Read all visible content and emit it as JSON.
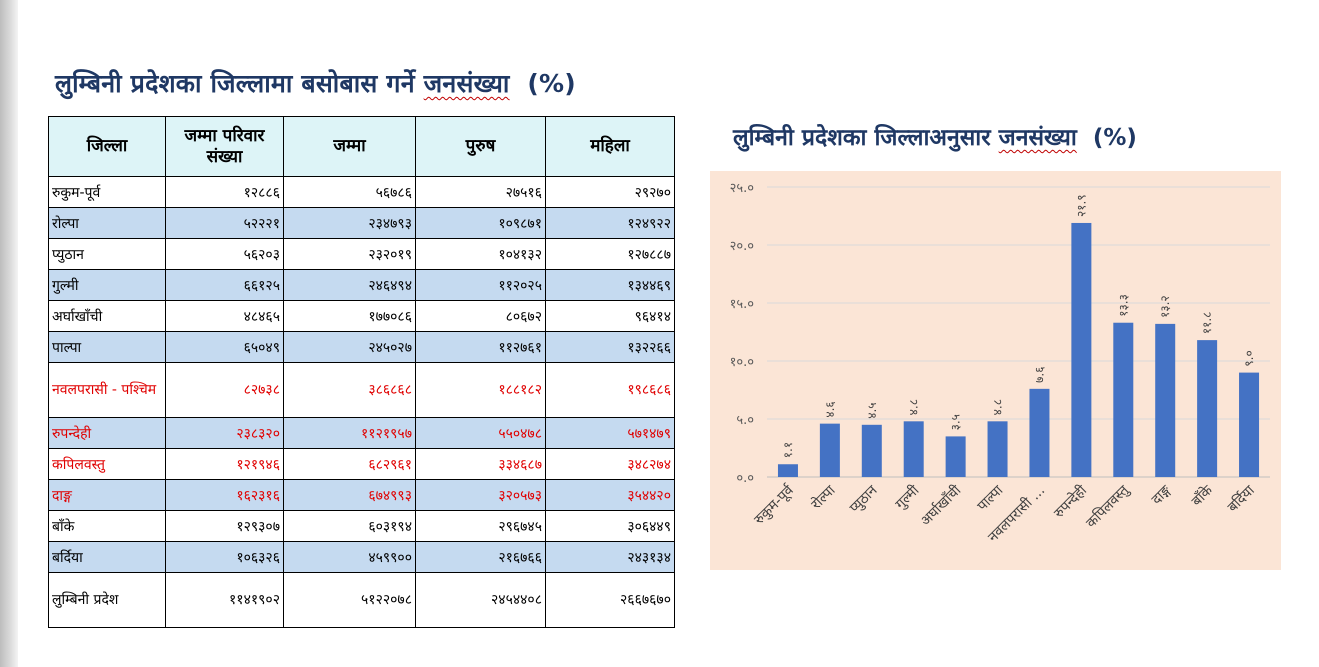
{
  "slide_title_main": "लुम्बिनी प्रदेशका जिल्लामा बसोबास गर्ने",
  "slide_title_word": "जनसंख्या",
  "slide_title_unit": "(%)",
  "table": {
    "headers": [
      "जिल्ला",
      "जम्मा परिवार संख्या",
      "जम्मा",
      "पुरुष",
      "महिला"
    ],
    "rows": [
      {
        "district": "रुकुम-पूर्व",
        "households": "१२८८६",
        "total": "५६७८६",
        "male": "२७५१६",
        "female": "२९२७०",
        "shaded": false,
        "red": false
      },
      {
        "district": "रोल्पा",
        "households": "५२२२१",
        "total": "२३४७९३",
        "male": "१०९८७१",
        "female": "१२४९२२",
        "shaded": true,
        "red": false
      },
      {
        "district": "प्युठान",
        "households": "५६२०३",
        "total": "२३२०१९",
        "male": "१०४१३२",
        "female": "१२७८८७",
        "shaded": false,
        "red": false
      },
      {
        "district": "गुल्मी",
        "households": "६६१२५",
        "total": "२४६४९४",
        "male": "११२०२५",
        "female": "१३४४६९",
        "shaded": true,
        "red": false
      },
      {
        "district": "अर्घाखाँची",
        "households": "४८४६५",
        "total": "१७७०८६",
        "male": "८०६७२",
        "female": "९६४१४",
        "shaded": false,
        "red": false
      },
      {
        "district": "पाल्पा",
        "households": "६५०४९",
        "total": "२४५०२७",
        "male": "११२७६१",
        "female": "१३२२६६",
        "shaded": true,
        "red": false
      },
      {
        "district": "नवलपरासी - पश्चिम",
        "households": "८२७३८",
        "total": "३८६८६८",
        "male": "१८८१८२",
        "female": "१९८६८६",
        "shaded": false,
        "red": true
      },
      {
        "district": "रुपन्देही",
        "households": "२३८३२०",
        "total": "११२१९५७",
        "male": "५५०४७८",
        "female": "५७१४७९",
        "shaded": true,
        "red": true
      },
      {
        "district": "कपिलवस्तु",
        "households": "१२१९४६",
        "total": "६८२९६१",
        "male": "३३४६८७",
        "female": "३४८२७४",
        "shaded": false,
        "red": true
      },
      {
        "district": "दाङ्ग",
        "households": "१६२३१६",
        "total": "६७४९९३",
        "male": "३२०५७३",
        "female": "३५४४२०",
        "shaded": true,
        "red": true
      },
      {
        "district": "बाँके",
        "households": "१२९३०७",
        "total": "६०३१९४",
        "male": "२९६७४५",
        "female": "३०६४४९",
        "shaded": false,
        "red": false
      },
      {
        "district": "बर्दिया",
        "households": "१०६३२६",
        "total": "४५९९००",
        "male": "२१६७६६",
        "female": "२४३१३४",
        "shaded": true,
        "red": false
      },
      {
        "district": "लुम्बिनी प्रदेश",
        "households": "११४१९०२",
        "total": "५१२२०७८",
        "male": "२४५४४०८",
        "female": "२६६७६७०",
        "shaded": false,
        "red": false
      }
    ]
  },
  "chart_data": {
    "type": "bar",
    "title_main": "लुम्बिनी प्रदेशका जिल्लाअनुसार",
    "title_word": "जनसंख्या",
    "title_unit": "(%)",
    "categories": [
      "रुकुम-पूर्व",
      "रोल्पा",
      "प्युठान",
      "गुल्मी",
      "अर्घाखाँची",
      "पाल्पा",
      "नवलपरासी ...",
      "रुपन्देही",
      "कपिलवस्तु",
      "दाङ्ग",
      "बाँके",
      "बर्दिया"
    ],
    "values": [
      1.1,
      4.6,
      4.5,
      4.8,
      3.5,
      4.8,
      7.6,
      21.9,
      13.3,
      13.2,
      11.8,
      9.0
    ],
    "value_labels": [
      "१.१",
      "४.६",
      "४.५",
      "४.८",
      "३.५",
      "४.८",
      "७.६",
      "२१.९",
      "१३.३",
      "१३.२",
      "११.८",
      "९.०"
    ],
    "ylim": [
      0,
      25
    ],
    "yticks": [
      0,
      5,
      10,
      15,
      20,
      25
    ],
    "ytick_labels": [
      "०.०",
      "५.०",
      "१०.०",
      "१५.०",
      "२०.०",
      "२५.०"
    ],
    "grid": true,
    "bar_color": "#4472c4",
    "background": "#fbe5d6"
  }
}
